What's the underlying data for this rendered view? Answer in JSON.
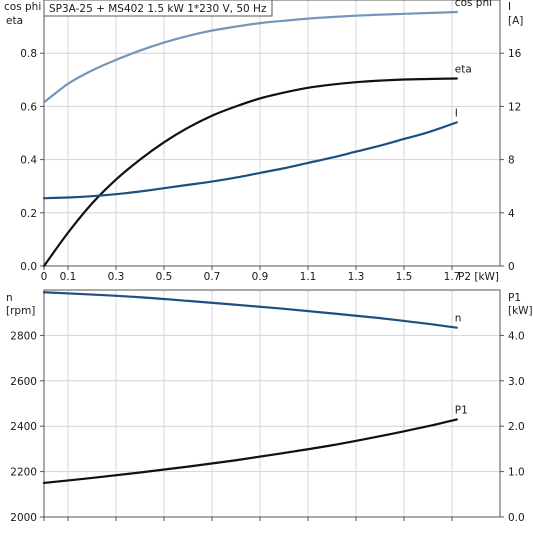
{
  "chart_data": [
    {
      "type": "line",
      "title": "SP3A-25 + MS402   1.5 kW   1*230 V, 50 Hz",
      "xlabel": "P2 [kW]",
      "xlim": [
        0,
        1.9
      ],
      "xticks": [
        0,
        0.1,
        0.3,
        0.5,
        0.7,
        0.9,
        1.1,
        1.3,
        1.5,
        1.7
      ],
      "xtick_labels": [
        "0",
        "0.1",
        "0.3",
        "0.5",
        "0.7",
        "0.9",
        "1.1",
        "1.3",
        "1.5",
        "1.7"
      ],
      "y_left": {
        "label_lines": [
          "cos phi",
          "eta"
        ],
        "lim": [
          0,
          1.0
        ],
        "ticks": [
          0.0,
          0.2,
          0.4,
          0.6,
          0.8
        ],
        "tick_labels": [
          "0.0",
          "0.2",
          "0.4",
          "0.6",
          "0.8"
        ]
      },
      "y_right": {
        "label_lines": [
          "I",
          "[A]"
        ],
        "lim": [
          0,
          20
        ],
        "ticks": [
          0,
          4,
          8,
          12,
          16
        ],
        "tick_labels": [
          "0",
          "4",
          "8",
          "12",
          "16"
        ]
      },
      "grid": true,
      "series": [
        {
          "name": "cos phi",
          "axis": "left",
          "color": "#7396bb",
          "x": [
            0,
            0.1,
            0.2,
            0.3,
            0.4,
            0.5,
            0.6,
            0.7,
            0.8,
            0.9,
            1.0,
            1.1,
            1.2,
            1.3,
            1.4,
            1.5,
            1.6,
            1.72
          ],
          "y": [
            0.615,
            0.685,
            0.735,
            0.775,
            0.81,
            0.84,
            0.865,
            0.885,
            0.9,
            0.913,
            0.922,
            0.93,
            0.936,
            0.941,
            0.945,
            0.948,
            0.951,
            0.955
          ]
        },
        {
          "name": "eta",
          "axis": "left",
          "color": "#111111",
          "x": [
            0,
            0.1,
            0.2,
            0.3,
            0.4,
            0.5,
            0.6,
            0.7,
            0.8,
            0.9,
            1.0,
            1.1,
            1.2,
            1.3,
            1.4,
            1.5,
            1.6,
            1.72
          ],
          "y": [
            0.0,
            0.125,
            0.235,
            0.325,
            0.4,
            0.465,
            0.52,
            0.565,
            0.6,
            0.63,
            0.652,
            0.67,
            0.682,
            0.691,
            0.697,
            0.701,
            0.703,
            0.705
          ]
        },
        {
          "name": "I",
          "axis": "right",
          "color": "#1f4f82",
          "x": [
            0,
            0.1,
            0.2,
            0.3,
            0.4,
            0.5,
            0.6,
            0.7,
            0.8,
            0.9,
            1.0,
            1.1,
            1.2,
            1.3,
            1.4,
            1.5,
            1.6,
            1.72
          ],
          "y": [
            5.1,
            5.15,
            5.25,
            5.4,
            5.6,
            5.85,
            6.1,
            6.35,
            6.65,
            7.0,
            7.35,
            7.75,
            8.15,
            8.6,
            9.05,
            9.55,
            10.05,
            10.8
          ]
        }
      ]
    },
    {
      "type": "line",
      "xlim": [
        0,
        1.9
      ],
      "y_left": {
        "label_lines": [
          "n",
          "[rpm]"
        ],
        "lim": [
          2000,
          3000
        ],
        "ticks": [
          2000,
          2200,
          2400,
          2600,
          2800
        ],
        "tick_labels": [
          "2000",
          "2200",
          "2400",
          "2600",
          "2800"
        ]
      },
      "y_right": {
        "label_lines": [
          "P1",
          "[kW]"
        ],
        "lim": [
          0,
          5.0
        ],
        "ticks": [
          0.0,
          1.0,
          2.0,
          3.0,
          4.0
        ],
        "tick_labels": [
          "0.0",
          "1.0",
          "2.0",
          "3.0",
          "4.0"
        ]
      },
      "grid": true,
      "series": [
        {
          "name": "n",
          "axis": "left",
          "color": "#1f4f82",
          "x": [
            0,
            0.2,
            0.4,
            0.6,
            0.8,
            1.0,
            1.2,
            1.4,
            1.6,
            1.72
          ],
          "y": [
            2990,
            2980,
            2968,
            2952,
            2935,
            2917,
            2897,
            2876,
            2851,
            2834
          ]
        },
        {
          "name": "P1",
          "axis": "right",
          "color": "#111111",
          "x": [
            0,
            0.2,
            0.4,
            0.6,
            0.8,
            1.0,
            1.2,
            1.4,
            1.6,
            1.72
          ],
          "y": [
            0.75,
            0.86,
            0.98,
            1.11,
            1.25,
            1.41,
            1.58,
            1.78,
            2.0,
            2.15
          ]
        }
      ]
    }
  ]
}
